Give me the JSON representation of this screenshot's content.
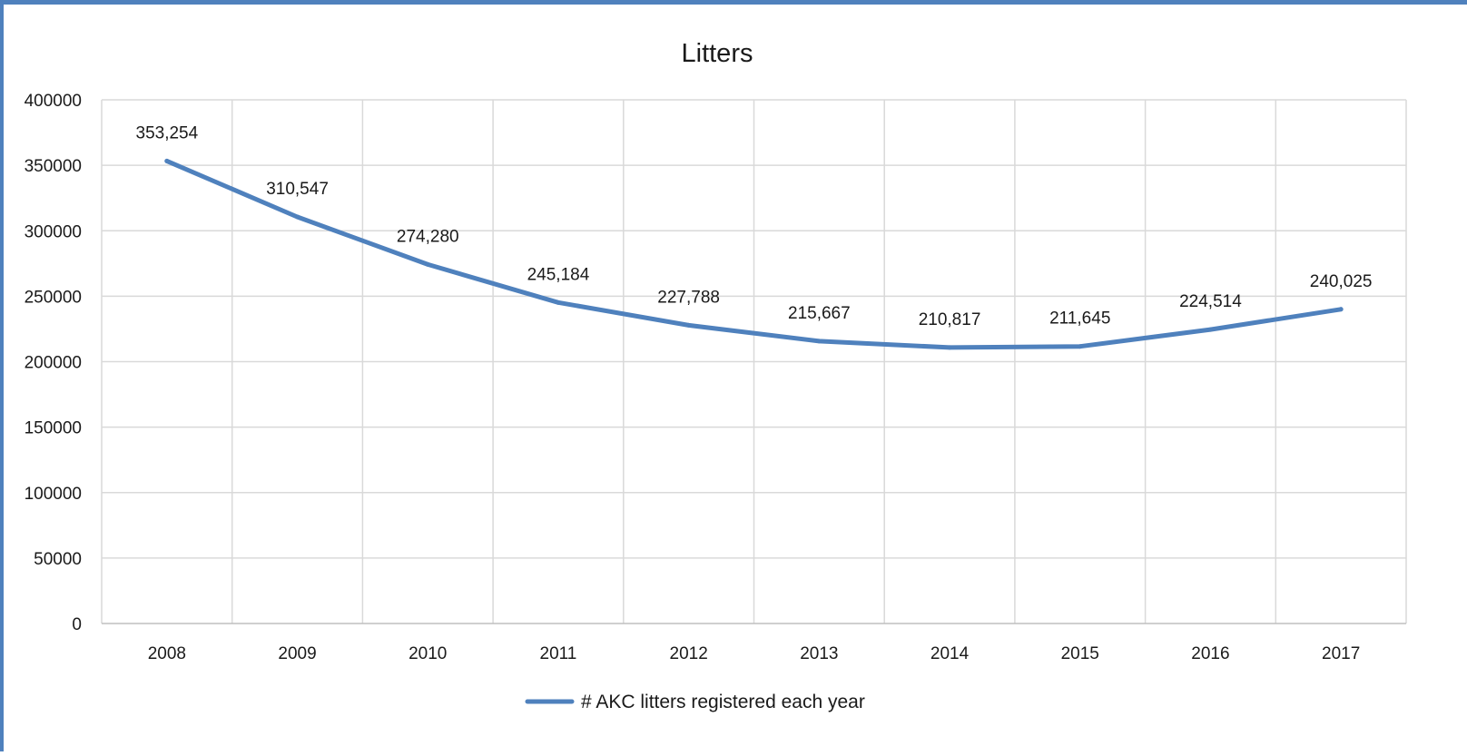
{
  "chart_data": {
    "type": "line",
    "title": "Litters",
    "xlabel": "",
    "ylabel": "",
    "categories": [
      "2008",
      "2009",
      "2010",
      "2011",
      "2012",
      "2013",
      "2014",
      "2015",
      "2016",
      "2017"
    ],
    "series": [
      {
        "name": "# AKC litters registered each year",
        "values": [
          353254,
          310547,
          274280,
          245184,
          227788,
          215667,
          210817,
          211645,
          224514,
          240025
        ],
        "data_labels": [
          "353,254",
          "310,547",
          "274,280",
          "245,184",
          "227,788",
          "215,667",
          "210,817",
          "211,645",
          "224,514",
          "240,025"
        ]
      }
    ],
    "ylim": [
      0,
      400000
    ],
    "yticks": [
      0,
      50000,
      100000,
      150000,
      200000,
      250000,
      300000,
      350000,
      400000
    ],
    "ytick_labels": [
      "0",
      "50000",
      "100000",
      "150000",
      "200000",
      "250000",
      "300000",
      "350000",
      "400000"
    ],
    "grid": true,
    "legend_position": "bottom",
    "colors": {
      "line": "#4f81bd",
      "grid": "#d9d9d9",
      "axis": "#bfbfbf",
      "text": "#1a1a1a",
      "frame": "#4f81bd"
    }
  }
}
